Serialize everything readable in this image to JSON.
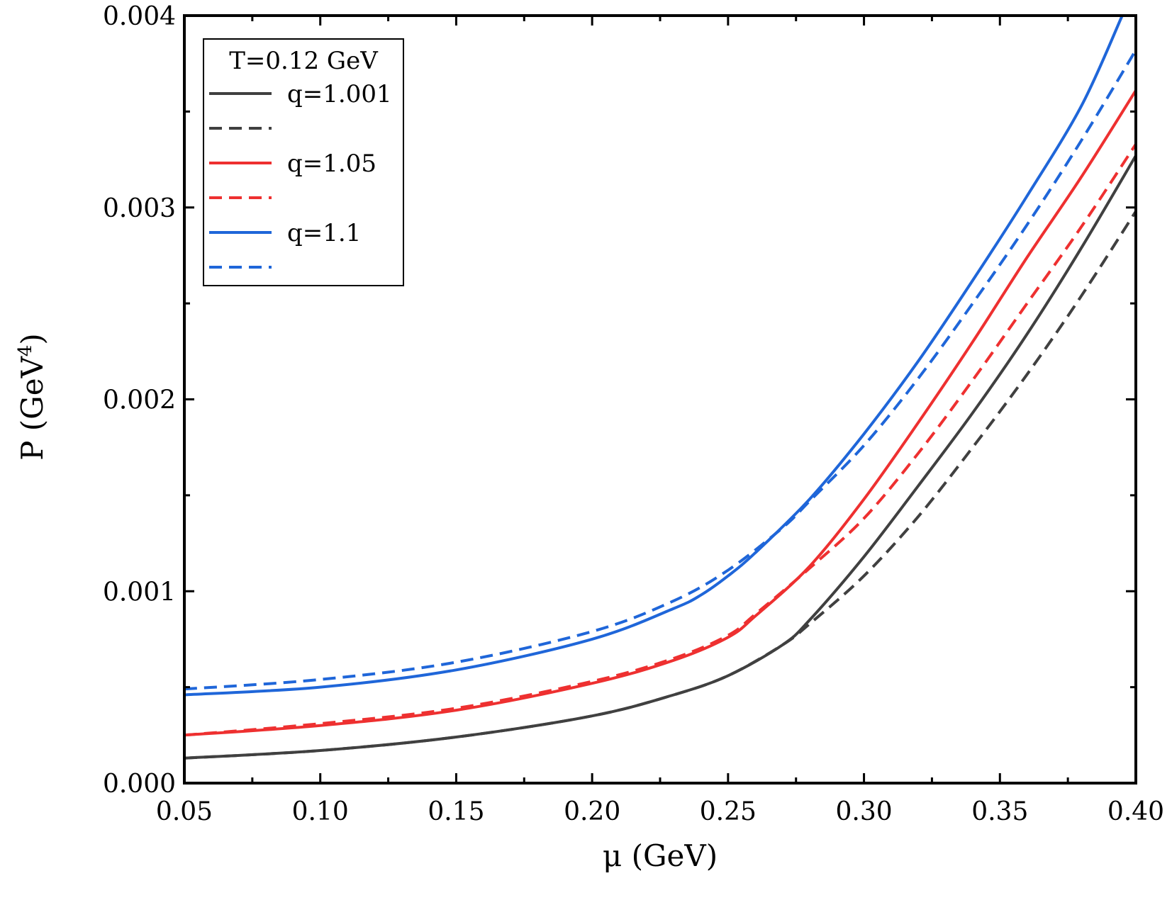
{
  "chart_data": {
    "type": "line",
    "title": "",
    "xlabel": "μ (GeV)",
    "ylabel_main": "P (GeV",
    "ylabel_sup": "4",
    "ylabel_close": ")",
    "xlim": [
      0.05,
      0.4
    ],
    "ylim": [
      0.0,
      0.004
    ],
    "xticks": [
      0.05,
      0.1,
      0.15,
      0.2,
      0.25,
      0.3,
      0.35,
      0.4
    ],
    "xtick_labels": [
      "0.05",
      "0.10",
      "0.15",
      "0.20",
      "0.25",
      "0.30",
      "0.35",
      "0.40"
    ],
    "yticks": [
      0.0,
      0.001,
      0.002,
      0.003,
      0.004
    ],
    "ytick_labels": [
      "0.000",
      "0.001",
      "0.002",
      "0.003",
      "0.004"
    ],
    "legend_title": "T=0.12 GeV",
    "legend_position": "top-left",
    "series": [
      {
        "name": "q=1.001",
        "style": "solid",
        "color": "#404040",
        "x": [
          0.05,
          0.1,
          0.15,
          0.2,
          0.23,
          0.25,
          0.27,
          0.28,
          0.3,
          0.32,
          0.34,
          0.36,
          0.38,
          0.4
        ],
        "y": [
          0.00013,
          0.00017,
          0.00024,
          0.00035,
          0.00046,
          0.00056,
          0.00072,
          0.00085,
          0.00118,
          0.00155,
          0.00193,
          0.00234,
          0.00279,
          0.00327
        ]
      },
      {
        "name": "",
        "style": "dashed",
        "color": "#404040",
        "x": [
          0.05,
          0.1,
          0.15,
          0.2,
          0.23,
          0.25,
          0.27,
          0.28,
          0.3,
          0.32,
          0.34,
          0.36,
          0.38,
          0.4
        ],
        "y": [
          0.00013,
          0.00017,
          0.00024,
          0.00035,
          0.00046,
          0.00056,
          0.00072,
          0.00083,
          0.00108,
          0.00139,
          0.00175,
          0.00213,
          0.00254,
          0.00298
        ]
      },
      {
        "name": "q=1.05",
        "style": "solid",
        "color": "#ee3030",
        "x": [
          0.05,
          0.1,
          0.15,
          0.2,
          0.23,
          0.25,
          0.26,
          0.28,
          0.3,
          0.32,
          0.34,
          0.36,
          0.38,
          0.4
        ],
        "y": [
          0.00025,
          0.0003,
          0.00038,
          0.00052,
          0.00064,
          0.00076,
          0.00087,
          0.00113,
          0.00148,
          0.00188,
          0.0023,
          0.00274,
          0.00316,
          0.00361
        ]
      },
      {
        "name": "",
        "style": "dashed",
        "color": "#ee3030",
        "x": [
          0.05,
          0.1,
          0.15,
          0.2,
          0.23,
          0.25,
          0.26,
          0.28,
          0.3,
          0.32,
          0.34,
          0.36,
          0.38,
          0.4
        ],
        "y": [
          0.00025,
          0.00031,
          0.00039,
          0.00053,
          0.00065,
          0.00077,
          0.00088,
          0.00112,
          0.00138,
          0.00172,
          0.0021,
          0.0025,
          0.0029,
          0.00333
        ]
      },
      {
        "name": "q=1.1",
        "style": "solid",
        "color": "#1f66d9",
        "x": [
          0.05,
          0.1,
          0.15,
          0.2,
          0.23,
          0.24,
          0.25,
          0.26,
          0.28,
          0.3,
          0.32,
          0.34,
          0.36,
          0.38,
          0.395
        ],
        "y": [
          0.00046,
          0.0005,
          0.00059,
          0.00075,
          0.00091,
          0.00098,
          0.00108,
          0.0012,
          0.00148,
          0.00182,
          0.0022,
          0.00262,
          0.00306,
          0.00353,
          0.004
        ]
      },
      {
        "name": "",
        "style": "dashed",
        "color": "#1f66d9",
        "x": [
          0.05,
          0.1,
          0.15,
          0.2,
          0.23,
          0.25,
          0.27,
          0.28,
          0.3,
          0.32,
          0.34,
          0.36,
          0.38,
          0.4
        ],
        "y": [
          0.00049,
          0.00054,
          0.00063,
          0.00079,
          0.00095,
          0.00111,
          0.00133,
          0.00147,
          0.00176,
          0.00211,
          0.0025,
          0.00291,
          0.00335,
          0.00382
        ]
      }
    ]
  }
}
